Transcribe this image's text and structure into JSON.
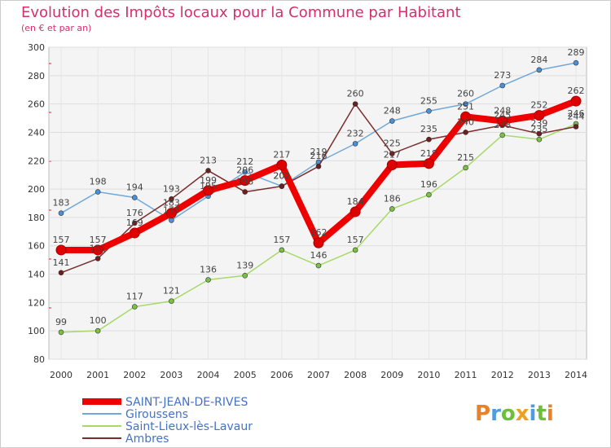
{
  "chart_data": {
    "type": "line",
    "title": "Evolution des Impôts locaux pour la Commune par Habitant",
    "subtitle": "(en € et par an)",
    "xlabel": "",
    "ylabel": "",
    "x": [
      2000,
      2001,
      2002,
      2003,
      2004,
      2005,
      2006,
      2007,
      2008,
      2009,
      2010,
      2011,
      2012,
      2013,
      2014
    ],
    "ylim": [
      80,
      300
    ],
    "yticks": [
      80,
      100,
      120,
      140,
      160,
      180,
      200,
      220,
      240,
      260,
      280,
      300
    ],
    "grid": true,
    "legend_position": "bottom-left",
    "series": [
      {
        "name": "Giroussens",
        "color": "#6fa8dc",
        "marker": "#4a90d9",
        "values": [
          183,
          198,
          194,
          178,
          195,
          212,
          202,
          219,
          232,
          248,
          255,
          260,
          273,
          284,
          289
        ],
        "labels": [
          "183",
          "198",
          "194",
          "178",
          "195",
          "212",
          "202",
          "219",
          "232",
          "248",
          "255",
          "260",
          "273",
          "284",
          "289"
        ]
      },
      {
        "name": "Saint-Lieux-lès-Lavaur",
        "color": "#a6d96a",
        "marker": "#7ac143",
        "values": [
          99,
          100,
          117,
          121,
          136,
          139,
          157,
          146,
          157,
          186,
          196,
          215,
          238,
          235,
          246
        ],
        "labels": [
          "99",
          "100",
          "117",
          "121",
          "136",
          "139",
          "157",
          "146",
          "157",
          "186",
          "196",
          "215",
          "238",
          "235",
          "246"
        ]
      },
      {
        "name": "Ambres",
        "color": "#7b2c2c",
        "marker": "#6b1f1f",
        "values": [
          141,
          151,
          176,
          193,
          213,
          198,
          202,
          216,
          260,
          225,
          235,
          240,
          245,
          239,
          244
        ],
        "labels": [
          "141",
          "151",
          "176",
          "193",
          "213",
          "198",
          "202",
          "216",
          "260",
          "225",
          "235",
          "240",
          "245",
          "239",
          "244"
        ]
      },
      {
        "name": "SAINT-JEAN-DE-RIVES",
        "color": "#ee0000",
        "marker": "#dd0000",
        "values": [
          157,
          157,
          169,
          183,
          199,
          206,
          217,
          162,
          184,
          217,
          218,
          251,
          248,
          252,
          262
        ],
        "labels": [
          "157",
          "157",
          "169",
          "183",
          "199",
          "206",
          "217",
          "162",
          "184",
          "217",
          "218",
          "251",
          "248",
          "252",
          "262"
        ]
      }
    ],
    "legend": [
      "SAINT-JEAN-DE-RIVES",
      "Giroussens",
      "Saint-Lieux-lès-Lavaur",
      "Ambres"
    ],
    "watermark": "Proxiti"
  }
}
